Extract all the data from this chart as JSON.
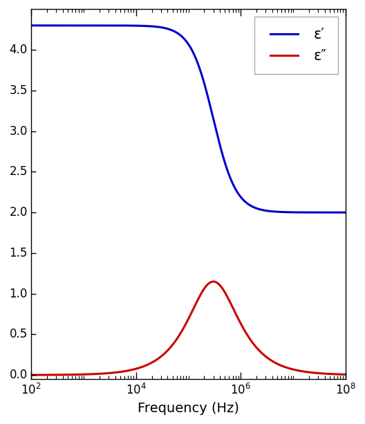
{
  "title": "",
  "xlabel": "Frequency (Hz)",
  "ylabel": "",
  "xlim_log": [
    2,
    8
  ],
  "ylim": [
    -0.05,
    4.5
  ],
  "yticks": [
    0,
    0.5,
    1.0,
    1.5,
    2.0,
    2.5,
    3.0,
    3.5,
    4.0
  ],
  "eps_inf": 2.0,
  "delta_eps": 2.3,
  "f0": 300000.0,
  "line_color_real": "#0000cc",
  "line_color_imag": "#cc0000",
  "line_width": 2.2,
  "legend_label_real": "ε′",
  "legend_label_imag": "ε″",
  "background_color": "#ffffff",
  "figsize": [
    5.28,
    6.13
  ],
  "dpi": 100,
  "major_xticks_log": [
    2,
    4,
    6,
    8
  ],
  "xlabel_fontsize": 14,
  "tick_labelsize": 12,
  "legend_fontsize": 15
}
